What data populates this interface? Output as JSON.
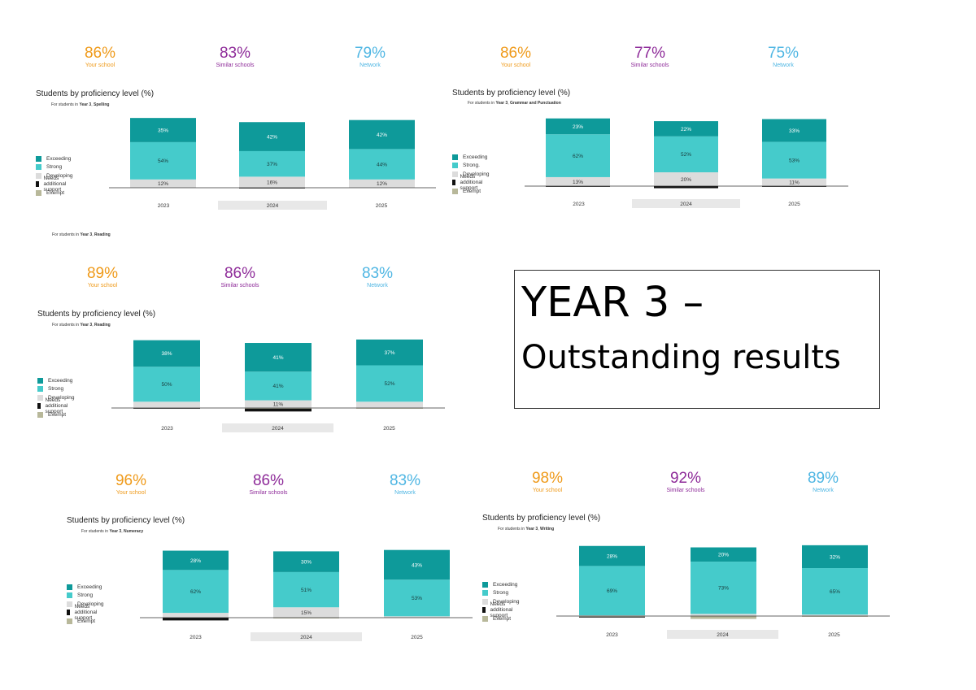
{
  "headline": {
    "line1": "YEAR 3 –",
    "line2": "Outstanding results"
  },
  "stray_note": {
    "prefix": "For students in ",
    "year": "Year 3",
    "subject": "Reading"
  },
  "legend_labels": [
    "Exceeding",
    "Strong",
    "Developing",
    "Needs additional support",
    "Exempt"
  ],
  "colors": {
    "exceeding": "#0e9a9a",
    "strong": "#45cbcb",
    "developing": "#dcdcdc",
    "needs": "#111111",
    "exempt": "#b8b89a",
    "school": "#ef9a1a",
    "similar": "#8e2b99",
    "network": "#4fb6e3"
  },
  "panels": [
    {
      "kpis": [
        {
          "value": "86%",
          "label": "Your school"
        },
        {
          "value": "83%",
          "label": "Similar schools"
        },
        {
          "value": "79%",
          "label": "Network"
        }
      ],
      "title": "Students by proficiency level (%)",
      "sub_prefix": "For students in ",
      "sub_year": "Year 3",
      "sub_subject": "Spelling",
      "legend": [
        "Exceeding",
        "Strong",
        "Developing",
        "Needs additional support",
        "Exempt"
      ]
    },
    {
      "kpis": [
        {
          "value": "86%",
          "label": "Your school"
        },
        {
          "value": "77%",
          "label": "Similar schools"
        },
        {
          "value": "75%",
          "label": "Network"
        }
      ],
      "title": "Students by proficiency level (%)",
      "sub_prefix": "For students in ",
      "sub_year": "Year 3",
      "sub_subject": "Grammar and Punctuation",
      "legend": [
        "Exceeding",
        "Strong.",
        "Developing",
        "Needs additional support",
        "Exempt"
      ]
    },
    {
      "kpis": [
        {
          "value": "89%",
          "label": "Your school"
        },
        {
          "value": "86%",
          "label": "Similar schools"
        },
        {
          "value": "83%",
          "label": "Network"
        }
      ],
      "title": "Students by proficiency level (%)",
      "sub_prefix": "For students in ",
      "sub_year": "Year 3",
      "sub_subject": "Reading",
      "legend": [
        "Exceeding",
        "Strong",
        "Developing",
        "Needs additional support",
        "Exempt"
      ]
    },
    {
      "kpis": [
        {
          "value": "96%",
          "label": "Your school"
        },
        {
          "value": "86%",
          "label": "Similar schools"
        },
        {
          "value": "83%",
          "label": "Network"
        }
      ],
      "title": "Students by proficiency level (%)",
      "sub_prefix": "For students in ",
      "sub_year": "Year 3",
      "sub_subject": "Numeracy",
      "legend": [
        "Exceeding",
        "Strong",
        "Developing",
        "Needs additional support",
        "Exempt"
      ]
    },
    {
      "kpis": [
        {
          "value": "98%",
          "label": "Your school"
        },
        {
          "value": "92%",
          "label": "Similar schools"
        },
        {
          "value": "89%",
          "label": "Network"
        }
      ],
      "title": "Students by proficiency level (%)",
      "sub_prefix": "For students in ",
      "sub_year": "Year 3",
      "sub_subject": "Writing",
      "legend": [
        "Exceeding",
        "Strong",
        "Developing",
        "Needs additional support",
        "Exempt"
      ]
    }
  ],
  "chart_data": [
    {
      "type": "bar",
      "stacked": true,
      "title": "Students by proficiency level (%)",
      "subject": "Spelling",
      "categories": [
        "2023",
        "2024",
        "2025"
      ],
      "series": [
        {
          "name": "Exempt",
          "values": [
            0,
            0,
            0
          ]
        },
        {
          "name": "Needs additional support",
          "values": [
            0,
            1,
            0
          ]
        },
        {
          "name": "Developing",
          "values": [
            12,
            16,
            12
          ]
        },
        {
          "name": "Strong",
          "values": [
            54,
            37,
            44
          ]
        },
        {
          "name": "Exceeding",
          "values": [
            35,
            42,
            42
          ]
        }
      ],
      "labels": [
        [
          "12%",
          "54%",
          "35%"
        ],
        [
          "16%",
          "37%",
          "42%"
        ],
        [
          "12%",
          "44%",
          "42%"
        ]
      ]
    },
    {
      "type": "bar",
      "stacked": true,
      "title": "Students by proficiency level (%)",
      "subject": "Grammar and Punctuation",
      "categories": [
        "2023",
        "2024",
        "2025"
      ],
      "series": [
        {
          "name": "Exempt",
          "values": [
            0,
            0,
            0
          ]
        },
        {
          "name": "Needs additional support",
          "values": [
            1,
            3,
            1
          ]
        },
        {
          "name": "Developing",
          "values": [
            13,
            20,
            11
          ]
        },
        {
          "name": "Strong",
          "values": [
            62,
            52,
            53
          ]
        },
        {
          "name": "Exceeding",
          "values": [
            23,
            22,
            33
          ]
        }
      ],
      "labels": [
        [
          "13%",
          "62%",
          "23%"
        ],
        [
          "20%",
          "52%",
          "22%"
        ],
        [
          "11%",
          "53%",
          "33%"
        ]
      ]
    },
    {
      "type": "bar",
      "stacked": true,
      "title": "Students by proficiency level (%)",
      "subject": "Reading",
      "categories": [
        "2023",
        "2024",
        "2025"
      ],
      "series": [
        {
          "name": "Exempt",
          "values": [
            0,
            1,
            1
          ]
        },
        {
          "name": "Needs additional support",
          "values": [
            1,
            4,
            0
          ]
        },
        {
          "name": "Developing",
          "values": [
            9,
            11,
            9
          ]
        },
        {
          "name": "Strong",
          "values": [
            50,
            41,
            52
          ]
        },
        {
          "name": "Exceeding",
          "values": [
            38,
            41,
            37
          ]
        }
      ],
      "labels": [
        [
          "",
          "50%",
          "38%"
        ],
        [
          "11%",
          "41%",
          "41%"
        ],
        [
          "",
          "52%",
          "37%"
        ]
      ]
    },
    {
      "type": "bar",
      "stacked": true,
      "title": "Students by proficiency level (%)",
      "subject": "Numeracy",
      "categories": [
        "2023",
        "2024",
        "2025"
      ],
      "series": [
        {
          "name": "Exempt",
          "values": [
            0,
            1,
            0
          ]
        },
        {
          "name": "Needs additional support",
          "values": [
            4,
            0,
            0
          ]
        },
        {
          "name": "Developing",
          "values": [
            7,
            15,
            2
          ]
        },
        {
          "name": "Strong",
          "values": [
            62,
            51,
            53
          ]
        },
        {
          "name": "Exceeding",
          "values": [
            28,
            30,
            43
          ]
        }
      ],
      "labels": [
        [
          "",
          "62%",
          "28%"
        ],
        [
          "15%",
          "51%",
          "30%"
        ],
        [
          "",
          "53%",
          "43%"
        ]
      ]
    },
    {
      "type": "bar",
      "stacked": true,
      "title": "Students by proficiency level (%)",
      "subject": "Writing",
      "categories": [
        "2023",
        "2024",
        "2025"
      ],
      "series": [
        {
          "name": "Exempt",
          "values": [
            1,
            4,
            1
          ]
        },
        {
          "name": "Needs additional support",
          "values": [
            1,
            0,
            0
          ]
        },
        {
          "name": "Developing",
          "values": [
            1,
            3,
            2
          ]
        },
        {
          "name": "Strong",
          "values": [
            69,
            73,
            65
          ]
        },
        {
          "name": "Exceeding",
          "values": [
            28,
            20,
            32
          ]
        }
      ],
      "labels": [
        [
          "",
          "69%",
          "28%"
        ],
        [
          "",
          "73%",
          "20%"
        ],
        [
          "",
          "65%",
          "32%"
        ]
      ]
    }
  ]
}
